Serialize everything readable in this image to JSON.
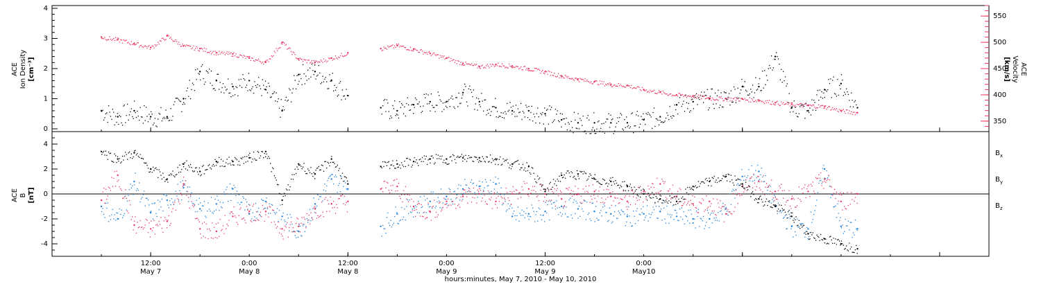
{
  "chart_data": [
    {
      "type": "scatter",
      "panel": "top",
      "ylabel_left": [
        "ACE",
        "Ion Density",
        "[cm⁻³]"
      ],
      "ylabel_right": [
        "ACE",
        "Velocity",
        "[km/s]"
      ],
      "ylim_left": [
        0,
        4
      ],
      "yticks_left": [
        "0",
        "1",
        "2",
        "3",
        "4"
      ],
      "ylim_right": [
        330,
        570
      ],
      "yticks_right": [
        "350",
        "400",
        "450",
        "500",
        "550"
      ],
      "colors": {
        "density": "#000000",
        "velocity": "#e8335f"
      },
      "series": [
        {
          "name": "Ion Density",
          "axis": "left",
          "x": [
            0,
            2,
            4,
            6,
            8,
            10,
            12,
            14,
            16,
            18,
            20,
            22,
            24,
            26,
            28,
            30,
            34,
            36,
            38,
            40,
            42,
            44,
            46,
            48,
            50,
            52,
            54,
            56,
            58,
            60,
            62,
            64,
            66,
            68,
            70,
            72,
            74,
            76,
            78,
            80,
            82,
            84,
            86,
            88,
            90,
            92
          ],
          "y": [
            0.6,
            0.4,
            0.6,
            0.4,
            0.4,
            1.0,
            1.9,
            1.6,
            1.4,
            1.6,
            1.3,
            0.6,
            1.8,
            1.9,
            1.6,
            1.1,
            0.7,
            0.6,
            0.8,
            0.9,
            0.9,
            1.2,
            0.9,
            0.7,
            0.6,
            0.6,
            0.5,
            0.3,
            0.2,
            0.2,
            0.2,
            0.2,
            0.3,
            0.4,
            0.8,
            0.9,
            1.0,
            1.0,
            1.4,
            1.4,
            2.4,
            0.7,
            0.6,
            1.3,
            1.5,
            0.7
          ]
        },
        {
          "name": "Velocity",
          "axis": "right",
          "x": [
            0,
            2,
            4,
            6,
            8,
            10,
            12,
            14,
            16,
            18,
            20,
            22,
            24,
            26,
            28,
            30,
            34,
            36,
            38,
            40,
            42,
            44,
            46,
            48,
            50,
            52,
            54,
            56,
            58,
            60,
            62,
            64,
            66,
            68,
            70,
            72,
            74,
            76,
            78,
            80,
            82,
            84,
            86,
            88,
            90,
            92
          ],
          "y": [
            510,
            505,
            498,
            490,
            512,
            493,
            488,
            480,
            478,
            470,
            462,
            500,
            468,
            462,
            470,
            480,
            488,
            494,
            487,
            479,
            470,
            460,
            454,
            458,
            455,
            450,
            444,
            436,
            430,
            425,
            420,
            418,
            410,
            405,
            400,
            398,
            394,
            393,
            392,
            390,
            385,
            382,
            380,
            378,
            370,
            366
          ]
        }
      ],
      "gaps": [
        [
          30,
          34
        ]
      ]
    },
    {
      "type": "scatter",
      "panel": "bottom",
      "ylabel_left": [
        "ACE",
        "B",
        "[nT]"
      ],
      "ylim": [
        -5,
        5
      ],
      "yticks": [
        "-4",
        "-2",
        "0",
        "2",
        "4"
      ],
      "legend": [
        "B",
        "B",
        "B"
      ],
      "legend_sub": [
        "x",
        "y",
        "z"
      ],
      "legend_placement": "right",
      "colors": {
        "bx": "#000000",
        "by": "#1b7fd6",
        "bz": "#e8335f"
      },
      "series": [
        {
          "name": "Bx",
          "x": [
            0,
            2,
            4,
            6,
            8,
            10,
            12,
            14,
            16,
            18,
            20,
            22,
            24,
            26,
            28,
            30,
            34,
            36,
            38,
            40,
            42,
            44,
            46,
            48,
            50,
            52,
            54,
            56,
            58,
            60,
            62,
            64,
            66,
            68,
            70,
            72,
            74,
            76,
            78,
            80,
            82,
            84,
            86,
            88,
            90,
            92
          ],
          "y": [
            3.4,
            2.8,
            3.3,
            2.0,
            1.2,
            2.4,
            1.8,
            2.6,
            2.6,
            2.9,
            3.4,
            -0.5,
            2.4,
            1.6,
            2.8,
            0.8,
            2.2,
            2.4,
            2.6,
            2.8,
            2.8,
            2.9,
            2.9,
            2.8,
            2.4,
            2.2,
            0.2,
            1.5,
            1.6,
            1.2,
            1.0,
            0.6,
            0.0,
            -0.4,
            -0.6,
            0.6,
            1.0,
            1.4,
            0.8,
            -0.4,
            -1.0,
            -1.8,
            -3.2,
            -3.6,
            -4.0,
            -4.4
          ]
        },
        {
          "name": "By",
          "x": [
            0,
            2,
            4,
            6,
            8,
            10,
            12,
            14,
            16,
            18,
            20,
            22,
            24,
            26,
            28,
            30,
            34,
            36,
            38,
            40,
            42,
            44,
            46,
            48,
            50,
            52,
            54,
            56,
            58,
            60,
            62,
            64,
            66,
            68,
            70,
            72,
            74,
            76,
            78,
            80,
            82,
            84,
            86,
            88,
            90,
            92
          ],
          "y": [
            -1.0,
            -2.0,
            1.0,
            -1.5,
            -0.5,
            0.5,
            -1.2,
            -0.8,
            0.4,
            -1.6,
            -0.6,
            -1.8,
            -3.0,
            -0.8,
            1.2,
            0.4,
            -2.6,
            -1.6,
            -1.0,
            -0.6,
            -0.2,
            0.4,
            0.6,
            0.8,
            -1.8,
            -1.6,
            -1.4,
            -1.0,
            -1.2,
            -1.4,
            -1.6,
            -1.8,
            -1.6,
            -1.4,
            -1.8,
            -2.0,
            -2.0,
            -1.2,
            1.4,
            1.8,
            -1.0,
            -2.6,
            -2.8,
            2.0,
            -2.6,
            -2.8
          ]
        },
        {
          "name": "Bz",
          "x": [
            0,
            2,
            4,
            6,
            8,
            10,
            12,
            14,
            16,
            18,
            20,
            22,
            24,
            26,
            28,
            30,
            34,
            36,
            38,
            40,
            42,
            44,
            46,
            48,
            50,
            52,
            54,
            56,
            58,
            60,
            62,
            64,
            66,
            68,
            70,
            72,
            74,
            76,
            78,
            80,
            82,
            84,
            86,
            88,
            90,
            92
          ],
          "y": [
            -0.5,
            1.5,
            -2.5,
            -2.8,
            -2.2,
            0.8,
            -2.8,
            -3.0,
            -1.8,
            -1.4,
            -1.4,
            -2.8,
            -2.6,
            -1.2,
            -0.8,
            -0.6,
            0.4,
            0.6,
            -1.0,
            -1.4,
            -0.6,
            -0.2,
            0.0,
            -0.6,
            0.0,
            0.4,
            0.0,
            -0.4,
            0.0,
            0.2,
            -0.2,
            -0.6,
            0.2,
            0.8,
            -0.2,
            -0.8,
            -0.6,
            -1.6,
            0.6,
            1.0,
            0.2,
            -0.4,
            0.2,
            1.2,
            -0.6,
            0.0
          ]
        }
      ],
      "gaps": [
        [
          30,
          34
        ]
      ]
    }
  ],
  "x_axis": {
    "xlim_hours": [
      -6,
      108
    ],
    "ticks_hours": [
      6,
      30,
      54,
      78,
      102
    ],
    "tick_labels": [
      [
        "12:00",
        "May 7"
      ],
      [
        "0:00",
        "May 8"
      ],
      [
        "12:00",
        "May 8"
      ],
      [
        "0:00",
        "May 9"
      ],
      [
        "12:00",
        "May 9"
      ],
      [
        "0:00",
        "May10"
      ]
    ],
    "tick_label_hours": [
      6,
      18,
      30,
      42,
      54,
      66
    ],
    "xlabel": "hours:minutes, May  7, 2010 - May 10, 2010"
  }
}
